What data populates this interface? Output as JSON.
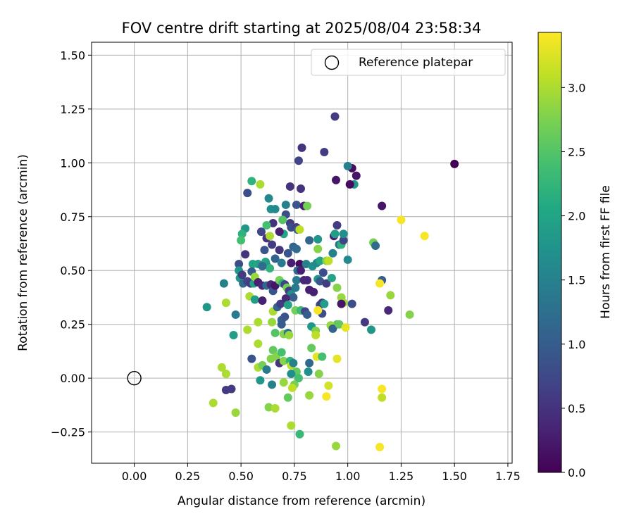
{
  "chart_data": {
    "type": "scatter",
    "title": "FOV centre drift starting at 2025/08/04 23:58:34",
    "xlabel": "Angular distance from reference (arcmin)",
    "ylabel": "Rotation from reference (arcmin)",
    "xlim": [
      -0.2,
      1.77
    ],
    "ylim": [
      -0.395,
      1.56
    ],
    "xticks": [
      0.0,
      0.25,
      0.5,
      0.75,
      1.0,
      1.25,
      1.5,
      1.75
    ],
    "xtick_labels": [
      "0.00",
      "0.25",
      "0.50",
      "0.75",
      "1.00",
      "1.25",
      "1.50",
      "1.75"
    ],
    "yticks": [
      -0.25,
      0.0,
      0.25,
      0.5,
      0.75,
      1.0,
      1.25,
      1.5
    ],
    "ytick_labels": [
      "−0.25",
      "0.00",
      "0.25",
      "0.50",
      "0.75",
      "1.00",
      "1.25",
      "1.50"
    ],
    "grid": true,
    "legend": {
      "placement": "top-right",
      "entries": [
        "Reference platepar"
      ]
    },
    "reference_marker": {
      "label": "Reference platepar",
      "x": 0.0,
      "y": 0.0,
      "marker": "open-circle"
    },
    "colorbar": {
      "label": "Hours from first FF file",
      "colormap": "viridis",
      "range": [
        0.0,
        3.43
      ],
      "ticks": [
        0.0,
        0.5,
        1.0,
        1.5,
        2.0,
        2.5,
        3.0
      ],
      "tick_labels": [
        "0.0",
        "0.5",
        "1.0",
        "1.5",
        "2.0",
        "2.5",
        "3.0"
      ]
    },
    "points": [
      [
        1.5,
        0.995,
        0.0
      ],
      [
        0.94,
        1.215,
        0.6
      ],
      [
        0.89,
        1.05,
        0.6
      ],
      [
        0.785,
        1.07,
        0.5
      ],
      [
        0.77,
        1.01,
        0.7
      ],
      [
        1.02,
        0.975,
        0.1
      ],
      [
        1.04,
        0.94,
        0.2
      ],
      [
        1.0,
        0.985,
        1.5
      ],
      [
        1.03,
        0.9,
        1.8
      ],
      [
        0.945,
        0.92,
        0.2
      ],
      [
        1.01,
        0.9,
        0.1
      ],
      [
        0.73,
        0.89,
        0.5
      ],
      [
        0.78,
        0.88,
        0.5
      ],
      [
        0.53,
        0.86,
        0.8
      ],
      [
        0.55,
        0.915,
        2.2
      ],
      [
        0.59,
        0.9,
        3.0
      ],
      [
        0.63,
        0.835,
        1.6
      ],
      [
        0.76,
        0.805,
        0.9
      ],
      [
        0.71,
        0.805,
        1.5
      ],
      [
        0.795,
        0.8,
        0.3
      ],
      [
        0.81,
        0.8,
        2.7
      ],
      [
        0.64,
        0.785,
        1.7
      ],
      [
        0.66,
        0.785,
        1.6
      ],
      [
        0.71,
        0.76,
        0.8
      ],
      [
        0.73,
        0.72,
        0.6
      ],
      [
        0.65,
        0.72,
        0.5
      ],
      [
        0.735,
        0.7,
        0.8
      ],
      [
        0.695,
        0.735,
        2.5
      ],
      [
        0.76,
        0.7,
        0.6
      ],
      [
        0.765,
        0.69,
        1.0
      ],
      [
        0.62,
        0.71,
        2.4
      ],
      [
        0.52,
        0.695,
        1.8
      ],
      [
        0.505,
        0.67,
        2.2
      ],
      [
        0.5,
        0.64,
        2.4
      ],
      [
        0.595,
        0.68,
        0.7
      ],
      [
        0.7,
        0.67,
        2.0
      ],
      [
        0.68,
        0.68,
        0.3
      ],
      [
        0.775,
        0.69,
        3.1
      ],
      [
        0.62,
        0.65,
        0.5
      ],
      [
        0.635,
        0.66,
        3.0
      ],
      [
        0.645,
        0.62,
        0.6
      ],
      [
        0.61,
        0.595,
        0.9
      ],
      [
        0.52,
        0.575,
        0.5
      ],
      [
        0.68,
        0.595,
        0.5
      ],
      [
        0.72,
        0.58,
        0.9
      ],
      [
        0.745,
        0.61,
        1.1
      ],
      [
        0.66,
        0.555,
        1.1
      ],
      [
        0.615,
        0.54,
        2.0
      ],
      [
        0.58,
        0.53,
        1.9
      ],
      [
        0.555,
        0.53,
        2.0
      ],
      [
        0.62,
        0.525,
        1.9
      ],
      [
        0.635,
        0.51,
        2.2
      ],
      [
        0.6,
        0.52,
        1.2
      ],
      [
        0.69,
        0.535,
        1.4
      ],
      [
        0.735,
        0.535,
        0.3
      ],
      [
        0.775,
        0.53,
        0.1
      ],
      [
        0.805,
        0.53,
        1.5
      ],
      [
        0.835,
        0.52,
        1.7
      ],
      [
        0.855,
        0.535,
        1.6
      ],
      [
        0.87,
        0.545,
        2.0
      ],
      [
        0.9,
        0.545,
        2.8
      ],
      [
        0.91,
        0.545,
        3.1
      ],
      [
        0.93,
        0.58,
        1.5
      ],
      [
        0.935,
        0.66,
        0.3
      ],
      [
        0.96,
        0.62,
        1.3
      ],
      [
        0.97,
        0.62,
        2.2
      ],
      [
        0.98,
        0.64,
        0.7
      ],
      [
        0.95,
        0.71,
        0.6
      ],
      [
        0.98,
        0.67,
        1.7
      ],
      [
        0.94,
        0.67,
        1.9
      ],
      [
        0.86,
        0.6,
        2.8
      ],
      [
        0.86,
        0.645,
        1.8
      ],
      [
        0.82,
        0.64,
        1.1
      ],
      [
        0.76,
        0.6,
        1.2
      ],
      [
        0.49,
        0.53,
        0.8
      ],
      [
        0.49,
        0.5,
        1.8
      ],
      [
        0.495,
        0.465,
        1.8
      ],
      [
        0.51,
        0.44,
        1.2
      ],
      [
        0.505,
        0.48,
        0.6
      ],
      [
        0.53,
        0.45,
        0.7
      ],
      [
        0.545,
        0.44,
        0.6
      ],
      [
        0.56,
        0.44,
        1.9
      ],
      [
        0.55,
        0.495,
        1.0
      ],
      [
        0.565,
        0.47,
        2.9
      ],
      [
        0.58,
        0.445,
        0.3
      ],
      [
        0.6,
        0.43,
        0.4
      ],
      [
        0.62,
        0.43,
        1.2
      ],
      [
        0.64,
        0.435,
        0.4
      ],
      [
        0.65,
        0.405,
        0.9
      ],
      [
        0.66,
        0.43,
        0.2
      ],
      [
        0.68,
        0.455,
        2.7
      ],
      [
        0.695,
        0.44,
        2.2
      ],
      [
        0.705,
        0.435,
        0.7
      ],
      [
        0.715,
        0.42,
        2.7
      ],
      [
        0.725,
        0.405,
        0.6
      ],
      [
        0.735,
        0.39,
        1.7
      ],
      [
        0.745,
        0.375,
        1.0
      ],
      [
        0.755,
        0.42,
        1.4
      ],
      [
        0.76,
        0.455,
        1.4
      ],
      [
        0.765,
        0.5,
        1.2
      ],
      [
        0.78,
        0.5,
        0.3
      ],
      [
        0.795,
        0.455,
        0.4
      ],
      [
        0.81,
        0.455,
        0.4
      ],
      [
        0.82,
        0.41,
        0.3
      ],
      [
        0.84,
        0.4,
        0.3
      ],
      [
        0.86,
        0.46,
        1.8
      ],
      [
        0.87,
        0.45,
        0.9
      ],
      [
        0.885,
        0.49,
        0.8
      ],
      [
        0.9,
        0.44,
        0.6
      ],
      [
        0.925,
        0.465,
        2.0
      ],
      [
        0.95,
        0.42,
        2.8
      ],
      [
        0.97,
        0.375,
        2.9
      ],
      [
        0.98,
        0.35,
        2.9
      ],
      [
        0.97,
        0.345,
        0.2
      ],
      [
        1.02,
        0.345,
        0.8
      ],
      [
        1.0,
        0.55,
        1.6
      ],
      [
        0.95,
        0.25,
        2.5
      ],
      [
        0.92,
        0.245,
        2.9
      ],
      [
        0.93,
        0.23,
        1.1
      ],
      [
        0.96,
        0.25,
        2.6
      ],
      [
        0.99,
        0.235,
        3.3
      ],
      [
        1.12,
        0.63,
        2.7
      ],
      [
        1.13,
        0.615,
        1.2
      ],
      [
        1.16,
        0.455,
        1.0
      ],
      [
        1.15,
        0.44,
        3.4
      ],
      [
        1.25,
        0.735,
        3.4
      ],
      [
        1.36,
        0.66,
        3.4
      ],
      [
        1.2,
        0.385,
        2.9
      ],
      [
        1.19,
        0.315,
        0.4
      ],
      [
        1.29,
        0.295,
        2.8
      ],
      [
        1.08,
        0.26,
        0.6
      ],
      [
        1.11,
        0.225,
        1.8
      ],
      [
        1.16,
        0.8,
        0.2
      ],
      [
        0.34,
        0.33,
        1.8
      ],
      [
        0.42,
        0.44,
        1.5
      ],
      [
        0.43,
        0.35,
        3.0
      ],
      [
        0.475,
        0.295,
        1.4
      ],
      [
        0.465,
        0.2,
        1.9
      ],
      [
        0.54,
        0.38,
        3.0
      ],
      [
        0.565,
        0.365,
        1.9
      ],
      [
        0.6,
        0.36,
        0.3
      ],
      [
        0.65,
        0.31,
        3.0
      ],
      [
        0.67,
        0.33,
        1.1
      ],
      [
        0.685,
        0.345,
        0.6
      ],
      [
        0.69,
        0.27,
        1.1
      ],
      [
        0.705,
        0.285,
        0.9
      ],
      [
        0.71,
        0.37,
        0.4
      ],
      [
        0.72,
        0.34,
        2.0
      ],
      [
        0.755,
        0.315,
        2.7
      ],
      [
        0.78,
        0.315,
        2.3
      ],
      [
        0.8,
        0.31,
        0.7
      ],
      [
        0.81,
        0.295,
        1.0
      ],
      [
        0.83,
        0.24,
        1.8
      ],
      [
        0.85,
        0.22,
        2.8
      ],
      [
        0.87,
        0.34,
        0.8
      ],
      [
        0.88,
        0.35,
        0.6
      ],
      [
        0.88,
        0.3,
        0.8
      ],
      [
        0.89,
        0.345,
        1.9
      ],
      [
        0.86,
        0.315,
        3.4
      ],
      [
        0.53,
        0.225,
        3.0
      ],
      [
        0.58,
        0.26,
        3.0
      ],
      [
        0.645,
        0.26,
        2.9
      ],
      [
        0.66,
        0.21,
        2.5
      ],
      [
        0.69,
        0.25,
        1.0
      ],
      [
        0.7,
        0.205,
        2.8
      ],
      [
        0.72,
        0.21,
        1.3
      ],
      [
        0.725,
        0.2,
        2.9
      ],
      [
        0.58,
        0.16,
        3.0
      ],
      [
        0.55,
        0.09,
        0.9
      ],
      [
        0.58,
        0.05,
        3.0
      ],
      [
        0.6,
        0.06,
        2.7
      ],
      [
        0.62,
        0.04,
        1.4
      ],
      [
        0.64,
        0.09,
        2.8
      ],
      [
        0.65,
        0.13,
        2.6
      ],
      [
        0.665,
        0.1,
        2.8
      ],
      [
        0.68,
        0.07,
        0.5
      ],
      [
        0.69,
        0.12,
        2.4
      ],
      [
        0.7,
        0.08,
        2.8
      ],
      [
        0.73,
        0.08,
        2.2
      ],
      [
        0.735,
        0.06,
        3.1
      ],
      [
        0.745,
        0.07,
        1.5
      ],
      [
        0.76,
        0.03,
        2.6
      ],
      [
        0.82,
        0.07,
        1.2
      ],
      [
        0.83,
        0.14,
        2.6
      ],
      [
        0.855,
        0.1,
        3.3
      ],
      [
        0.85,
        0.2,
        3.1
      ],
      [
        0.88,
        0.1,
        2.4
      ],
      [
        0.815,
        0.03,
        1.7
      ],
      [
        0.865,
        0.02,
        2.8
      ],
      [
        0.95,
        0.09,
        3.3
      ],
      [
        0.77,
        0.0,
        2.4
      ],
      [
        0.735,
        0.02,
        1.7
      ],
      [
        0.7,
        -0.02,
        2.9
      ],
      [
        0.75,
        -0.03,
        2.7
      ],
      [
        0.645,
        -0.03,
        1.5
      ],
      [
        0.59,
        -0.01,
        1.8
      ],
      [
        0.41,
        0.05,
        3.0
      ],
      [
        0.43,
        0.02,
        3.0
      ],
      [
        0.43,
        -0.055,
        0.6
      ],
      [
        0.455,
        -0.05,
        0.6
      ],
      [
        0.37,
        -0.115,
        3.0
      ],
      [
        0.475,
        -0.16,
        2.9
      ],
      [
        0.63,
        -0.135,
        2.8
      ],
      [
        0.66,
        -0.14,
        3.0
      ],
      [
        0.72,
        -0.09,
        2.6
      ],
      [
        0.74,
        -0.045,
        3.1
      ],
      [
        0.82,
        -0.08,
        2.9
      ],
      [
        0.91,
        -0.035,
        3.2
      ],
      [
        0.9,
        -0.085,
        3.4
      ],
      [
        1.16,
        -0.05,
        3.4
      ],
      [
        1.16,
        -0.09,
        3.1
      ],
      [
        0.735,
        -0.22,
        3.0
      ],
      [
        0.775,
        -0.26,
        2.3
      ],
      [
        0.945,
        -0.315,
        2.9
      ],
      [
        1.15,
        -0.32,
        3.4
      ]
    ]
  }
}
